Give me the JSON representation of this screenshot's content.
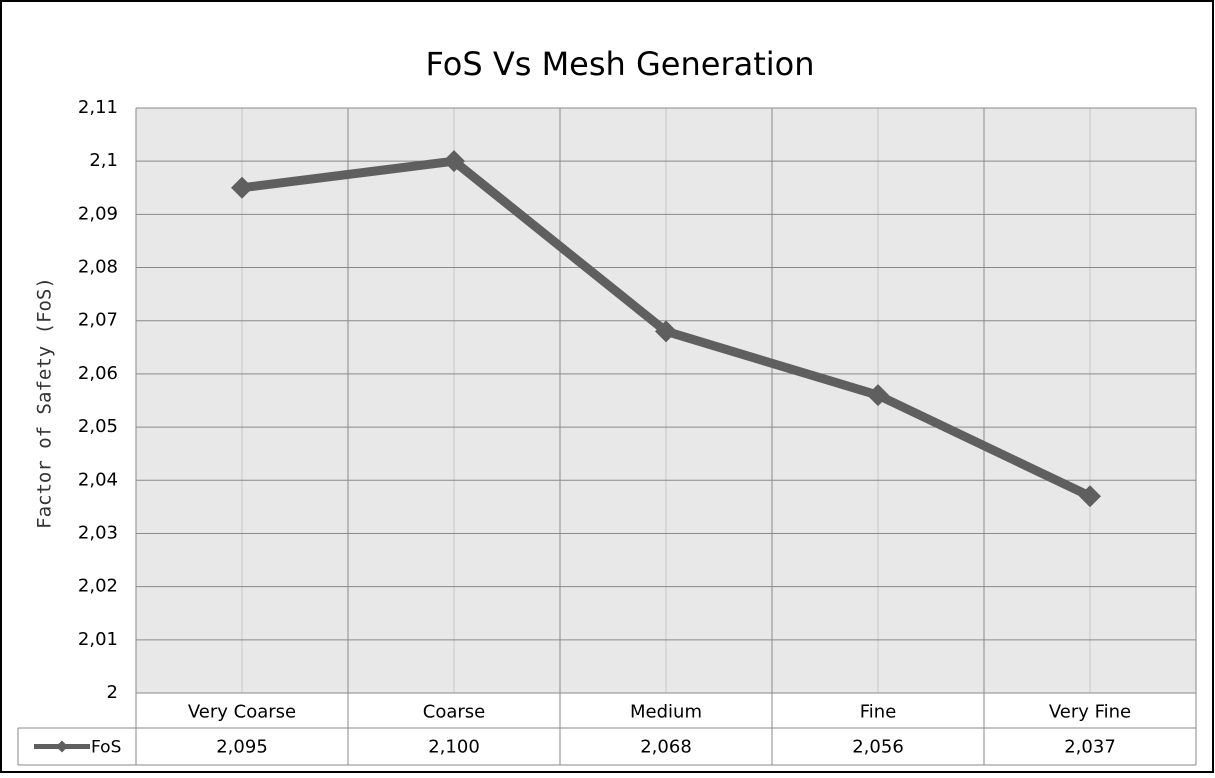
{
  "chart_data": {
    "type": "line",
    "title": "FoS Vs Mesh Generation",
    "y_label": "Factor of Safety (FoS)",
    "categories": [
      "Very Coarse",
      "Coarse",
      "Medium",
      "Fine",
      "Very Fine"
    ],
    "series": [
      {
        "name": "FoS",
        "color": "#5f5f5f",
        "values": [
          2.095,
          2.1,
          2.068,
          2.056,
          2.037
        ],
        "value_labels": [
          "2,095",
          "2,100",
          "2,068",
          "2,056",
          "2,037"
        ]
      }
    ],
    "ylim": [
      2,
      2.11
    ],
    "yticks": [
      2,
      {
        "value": 2.01,
        "label": "2,01"
      },
      {
        "value": 2.02,
        "label": "2,02"
      },
      {
        "value": 2.03,
        "label": "2,03"
      },
      {
        "value": 2.04,
        "label": "2,04"
      },
      {
        "value": 2.05,
        "label": "2,05"
      },
      {
        "value": 2.06,
        "label": "2,06"
      },
      {
        "value": 2.07,
        "label": "2,07"
      },
      {
        "value": 2.08,
        "label": "2,08"
      },
      {
        "value": 2.09,
        "label": "2,09"
      },
      {
        "value": 2.1,
        "label": "2,1"
      },
      {
        "value": 2.11,
        "label": "2,11"
      }
    ],
    "grid": true
  }
}
